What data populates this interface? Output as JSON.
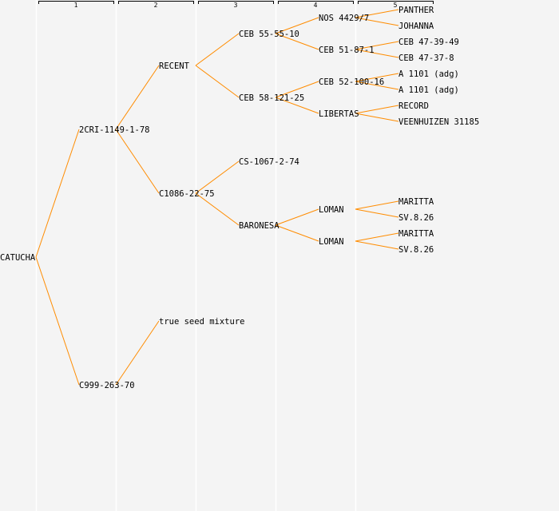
{
  "generations": [
    "1",
    "2",
    "3",
    "4",
    "5"
  ],
  "colors": {
    "line": "#ff8c00",
    "background": "#f4f4f4",
    "grid": "#ffffff"
  },
  "tree": {
    "name": "CATUCHA",
    "parents": [
      {
        "name": "2CRI-1149-1-78",
        "parents": [
          {
            "name": "RECENT",
            "parents": [
              {
                "name": "CEB 55-55-10",
                "parents": [
                  {
                    "name": "NOS 4429/7",
                    "parents": [
                      {
                        "name": "PANTHER"
                      },
                      {
                        "name": "JOHANNA"
                      }
                    ]
                  },
                  {
                    "name": "CEB 51-87-1",
                    "parents": [
                      {
                        "name": "CEB 47-39-49"
                      },
                      {
                        "name": "CEB 47-37-8"
                      }
                    ]
                  }
                ]
              },
              {
                "name": "CEB 58-121-25",
                "parents": [
                  {
                    "name": "CEB 52-100-16",
                    "parents": [
                      {
                        "name": "A 1101 (adg)"
                      },
                      {
                        "name": "A 1101 (adg)"
                      }
                    ]
                  },
                  {
                    "name": "LIBERTAS",
                    "parents": [
                      {
                        "name": "RECORD"
                      },
                      {
                        "name": "VEENHUIZEN 31185"
                      }
                    ]
                  }
                ]
              }
            ]
          },
          {
            "name": "C1086-22-75",
            "parents": [
              {
                "name": "CS-1067-2-74"
              },
              {
                "name": "BARONESA",
                "parents": [
                  {
                    "name": "LOMAN",
                    "parents": [
                      {
                        "name": "MARITTA"
                      },
                      {
                        "name": "SV.8.26"
                      }
                    ]
                  },
                  {
                    "name": "LOMAN",
                    "parents": [
                      {
                        "name": "MARITTA"
                      },
                      {
                        "name": "SV.8.26"
                      }
                    ]
                  }
                ]
              }
            ]
          }
        ]
      },
      {
        "name": "C999-263-70",
        "parents": [
          {
            "name": "true seed mixture"
          }
        ]
      }
    ]
  }
}
